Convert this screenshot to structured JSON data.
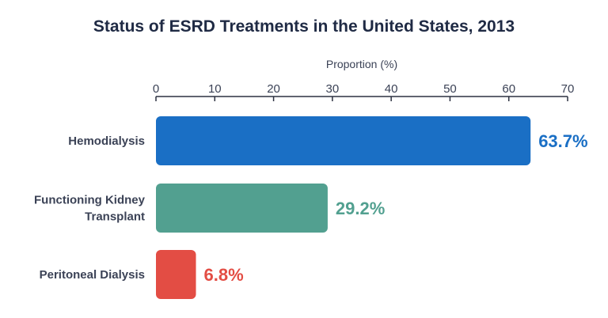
{
  "chart_data": {
    "type": "bar",
    "orientation": "horizontal",
    "title": "Status of ESRD Treatments in the United States, 2013",
    "xlabel": "Proportion (%)",
    "ylabel": "",
    "xlim": [
      0,
      70
    ],
    "ticks": [
      0,
      10,
      20,
      30,
      40,
      50,
      60,
      70
    ],
    "axis_position": "top",
    "grid": false,
    "categories": [
      [
        "Hemodialysis"
      ],
      [
        "Functioning Kidney",
        "Transplant"
      ],
      [
        "Peritoneal Dialysis"
      ]
    ],
    "values": [
      63.7,
      29.2,
      6.8
    ],
    "labels": [
      "63.7%",
      "29.2%",
      "6.8%"
    ],
    "colors": [
      "#1a6fc5",
      "#52a090",
      "#e34d44"
    ]
  }
}
